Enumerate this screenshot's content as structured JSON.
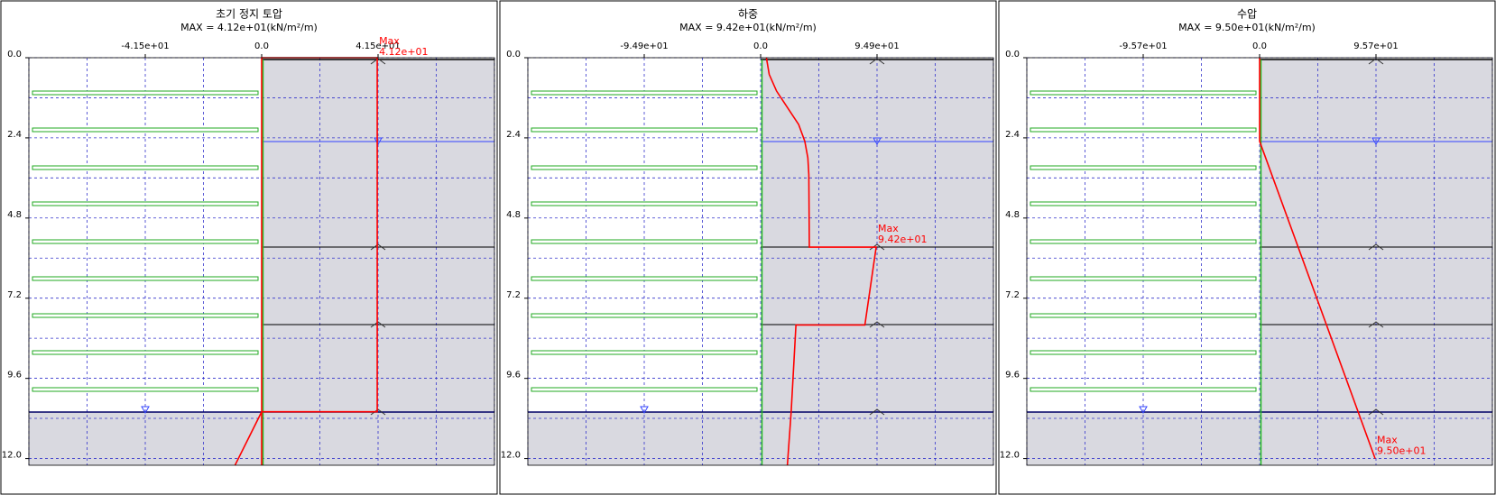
{
  "chart_data": [
    {
      "type": "line",
      "title": "초기 정지 토압",
      "subtitle": "MAX = 4.12e+01(kN/m²/m)",
      "xlim": [
        -83,
        83
      ],
      "xticks": [
        {
          "value": -41.5,
          "label": "-4.15e+01"
        },
        {
          "value": 0,
          "label": "0.0"
        },
        {
          "value": 41.5,
          "label": "4.15e+01"
        }
      ],
      "ylim": [
        0,
        12.2
      ],
      "yticks": [
        {
          "value": 0,
          "label": "0.0"
        },
        2.4,
        4.8,
        7.2,
        9.6,
        {
          "value": 12,
          "label": "12.0"
        }
      ],
      "y_inverted": true,
      "grid": true,
      "series": [
        {
          "color": "#ff0000",
          "x": [
            0,
            0,
            41.2,
            41.2,
            0,
            -9.5
          ],
          "values": [
            12.2,
            0,
            0,
            10.6,
            10.6,
            12.2
          ]
        }
      ],
      "annotations": [
        {
          "text": "Max",
          "x": 41.2,
          "y": 0,
          "label": "4.12e+01"
        }
      ]
    },
    {
      "type": "line",
      "title": "하중",
      "subtitle": "MAX = 9.42e+01(kN/m²/m)",
      "xlim": [
        -189.8,
        189.8
      ],
      "xticks": [
        {
          "value": -94.9,
          "label": "-9.49e+01"
        },
        {
          "value": 0,
          "label": "0.0"
        },
        {
          "value": 94.9,
          "label": "9.49e+01"
        }
      ],
      "ylim": [
        0,
        12.2
      ],
      "yticks": [
        {
          "value": 0,
          "label": "0.0"
        },
        2.4,
        4.8,
        7.2,
        9.6,
        {
          "value": 12,
          "label": "12.0"
        }
      ],
      "y_inverted": true,
      "grid": true,
      "series": [
        {
          "color": "#ff0000",
          "x": [
            4.7,
            7,
            13,
            22,
            31,
            36,
            38.5,
            39.3,
            39.7,
            94.2,
            85,
            28.8,
            24.9,
            21.8
          ],
          "values": [
            0,
            0.5,
            1.0,
            1.5,
            2.0,
            2.5,
            3.0,
            3.5,
            5.67,
            5.67,
            8.0,
            8.0,
            10.6,
            12.2
          ]
        }
      ],
      "annotations": [
        {
          "text": "Max",
          "x": 94.2,
          "y": 5.67,
          "label": "9.42e+01"
        }
      ]
    },
    {
      "type": "line",
      "title": "수압",
      "subtitle": "MAX = 9.50e+01(kN/m²/m)",
      "xlim": [
        -191.4,
        191.4
      ],
      "xticks": [
        {
          "value": -95.7,
          "label": "-9.57e+01"
        },
        {
          "value": 0,
          "label": "0.0"
        },
        {
          "value": 95.7,
          "label": "9.57e+01"
        }
      ],
      "ylim": [
        0,
        12.2
      ],
      "yticks": [
        {
          "value": 0,
          "label": "0.0"
        },
        2.4,
        4.8,
        7.2,
        9.6,
        {
          "value": 12,
          "label": "12.0"
        }
      ],
      "y_inverted": true,
      "grid": true,
      "series": [
        {
          "color": "#ff0000",
          "x": [
            0,
            0,
            95.0
          ],
          "values": [
            0,
            2.5,
            12.0
          ]
        }
      ],
      "annotations": [
        {
          "text": "Max",
          "x": 95.0,
          "y": 12.0,
          "label": "9.50e+01"
        }
      ]
    }
  ]
}
